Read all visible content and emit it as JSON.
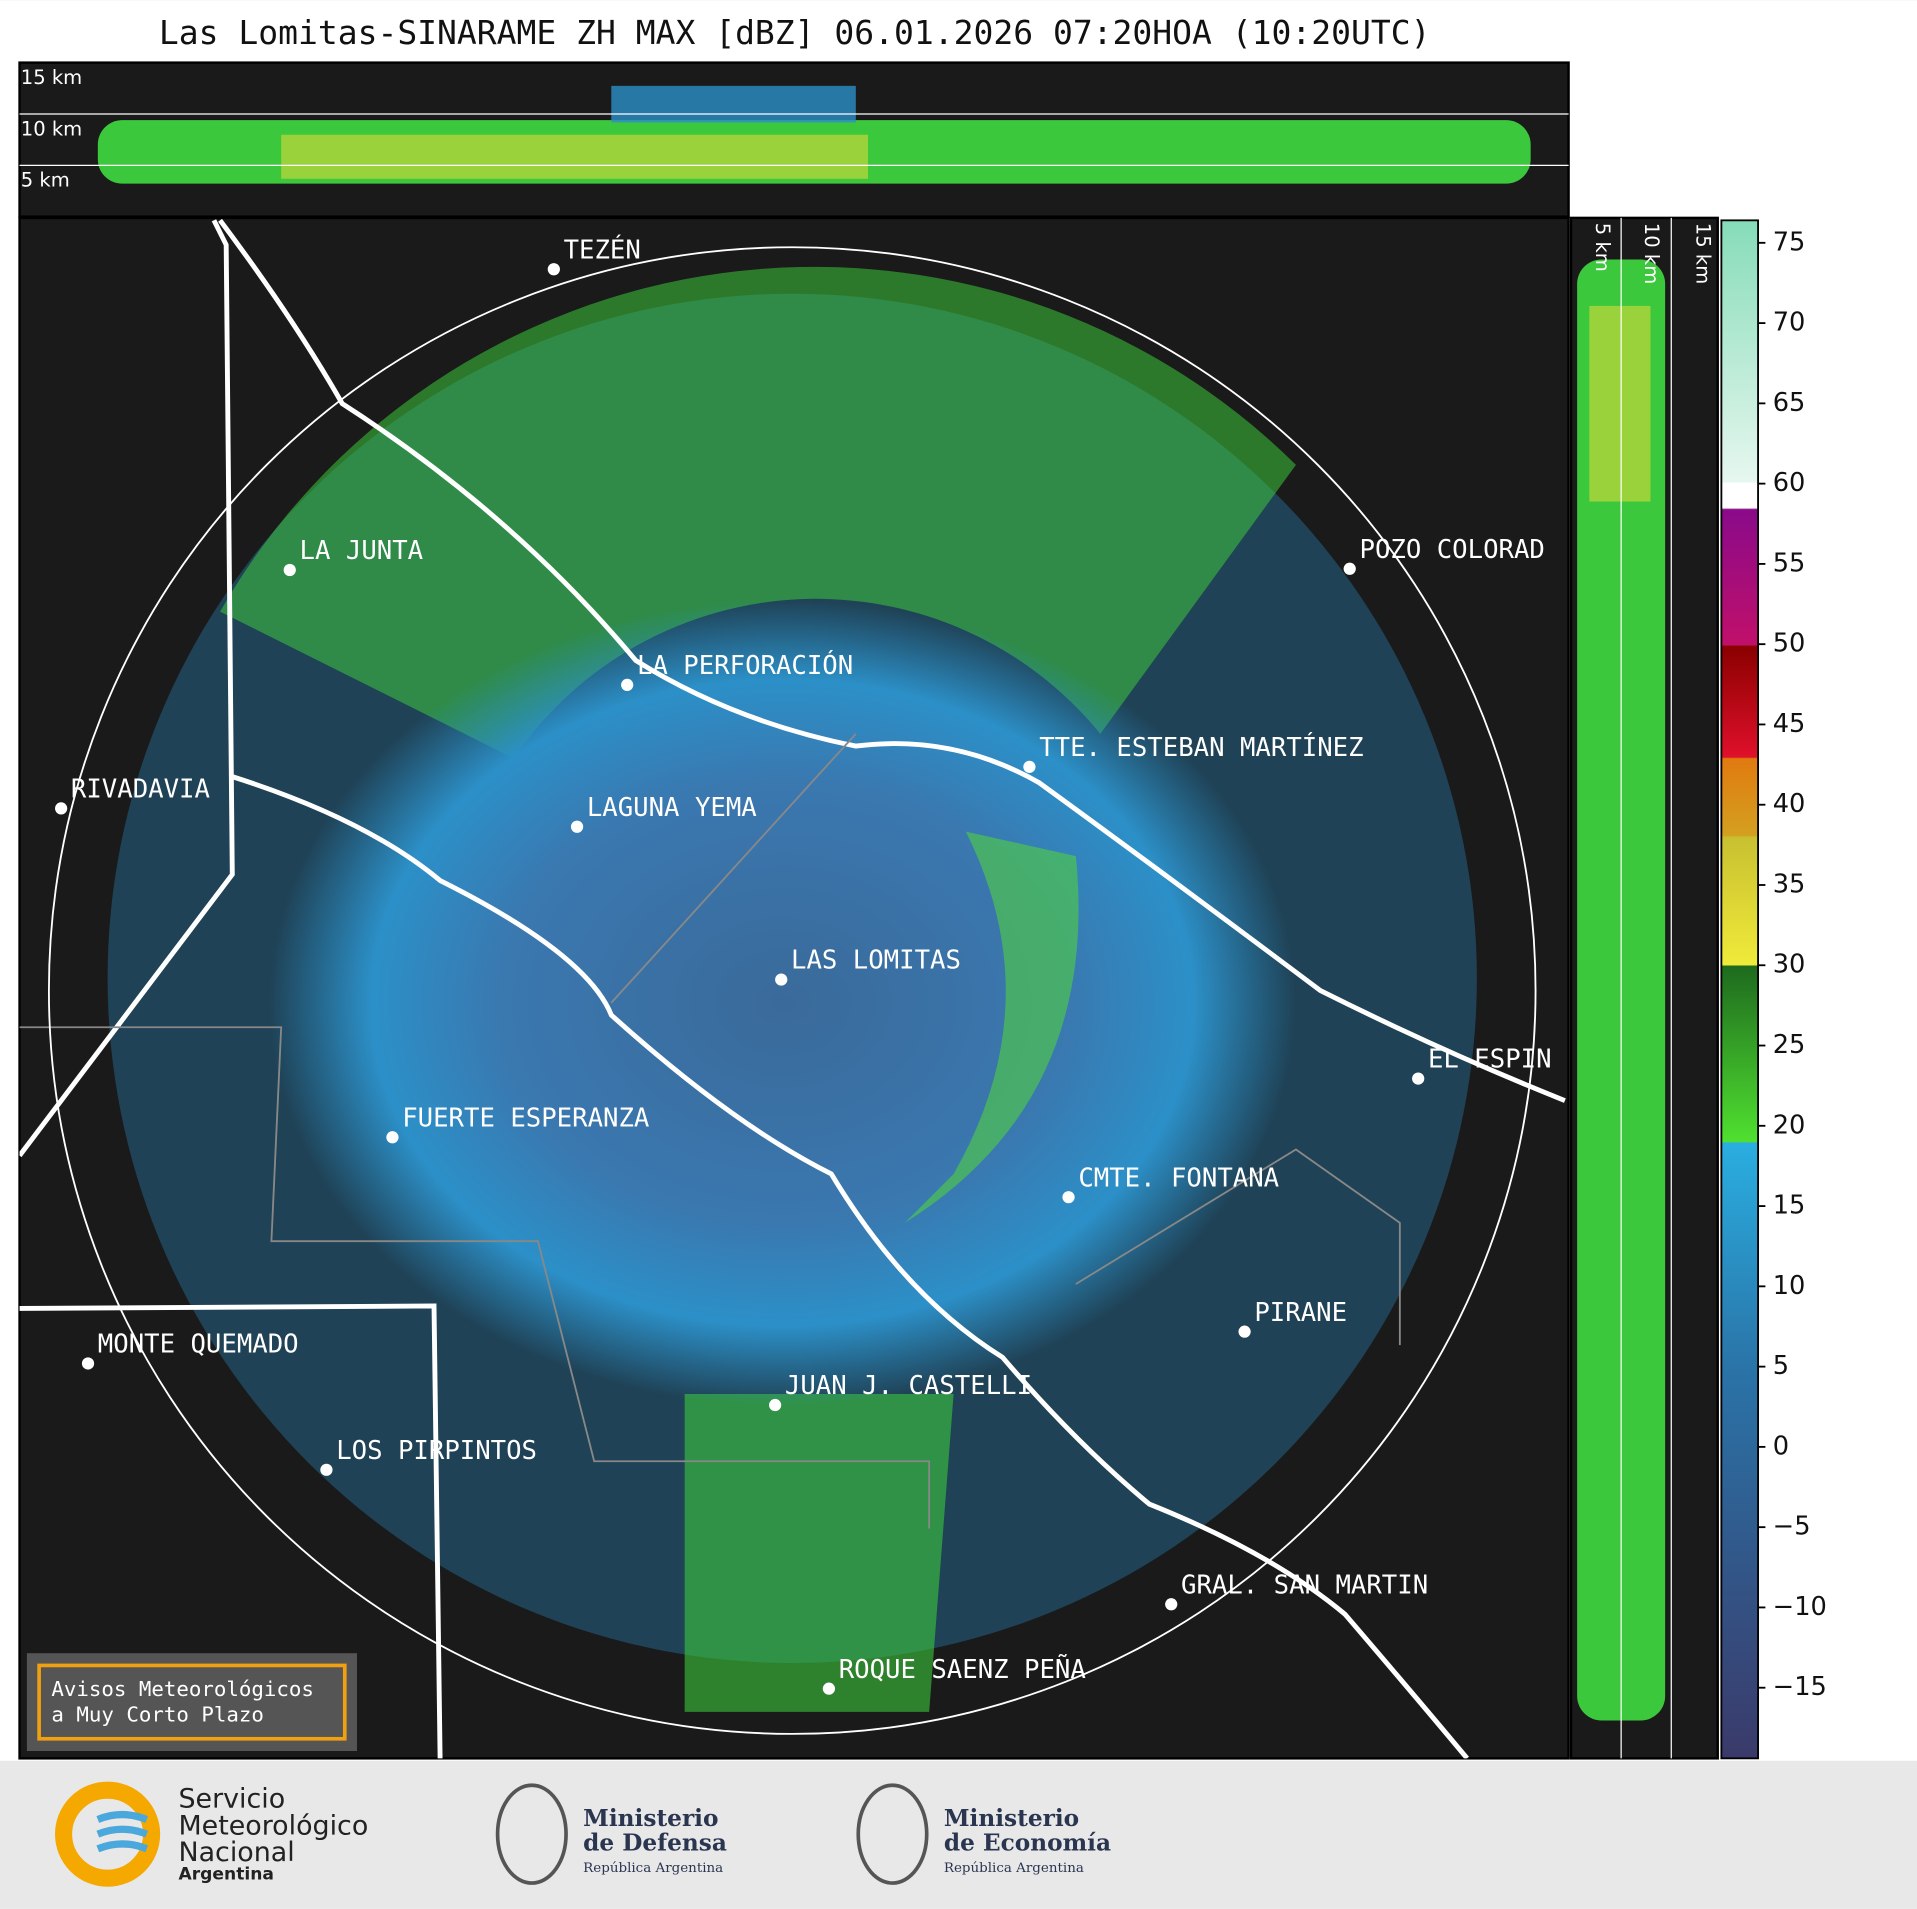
{
  "header": {
    "title": "Las Lomitas-SINARAME ZH MAX [dBZ] 06.01.2026 07:20HOA (10:20UTC)"
  },
  "top_section": {
    "labels": [
      "15 km",
      "10 km",
      "5 km"
    ]
  },
  "side_section": {
    "labels": [
      "5 km",
      "10 km",
      "15 km"
    ]
  },
  "map": {
    "places": [
      "TEZÉN",
      "LA JUNTA",
      "POZO COLORAD",
      "LA PERFORACIÓN",
      "TTE. ESTEBAN MARTÍNEZ",
      "RIVADAVIA",
      "LAGUNA YEMA",
      "LAS LOMITAS",
      "EL ESPIN",
      "FUERTE ESPERANZA",
      "CMTE. FONTANA",
      "PIRANE",
      "MONTE QUEMADO",
      "JUAN J. CASTELLI",
      "LOS PIRPINTOS",
      "GRAL. SAN MARTIN",
      "ROQUE SAENZ PEÑA"
    ]
  },
  "colorbar": {
    "lim": [
      -19.4,
      76.4
    ],
    "ticks": [
      75,
      70,
      65,
      60,
      55,
      50,
      45,
      40,
      35,
      30,
      25,
      20,
      15,
      10,
      5,
      0,
      {
        "value": -5,
        "label": "−5"
      },
      {
        "value": -10,
        "label": "−10"
      },
      {
        "value": -15,
        "label": "−15"
      }
    ]
  },
  "warning_box": {
    "lines": [
      "Avisos Meteorológicos",
      "a Muy Corto Plazo"
    ]
  },
  "footer": {
    "smn": [
      "Servicio",
      "Meteorológico",
      "Nacional",
      "Argentina"
    ],
    "defensa": [
      "Ministerio",
      "de Defensa",
      "República Argentina"
    ],
    "economia": [
      "Ministerio",
      "de Economía",
      "República Argentina"
    ]
  }
}
